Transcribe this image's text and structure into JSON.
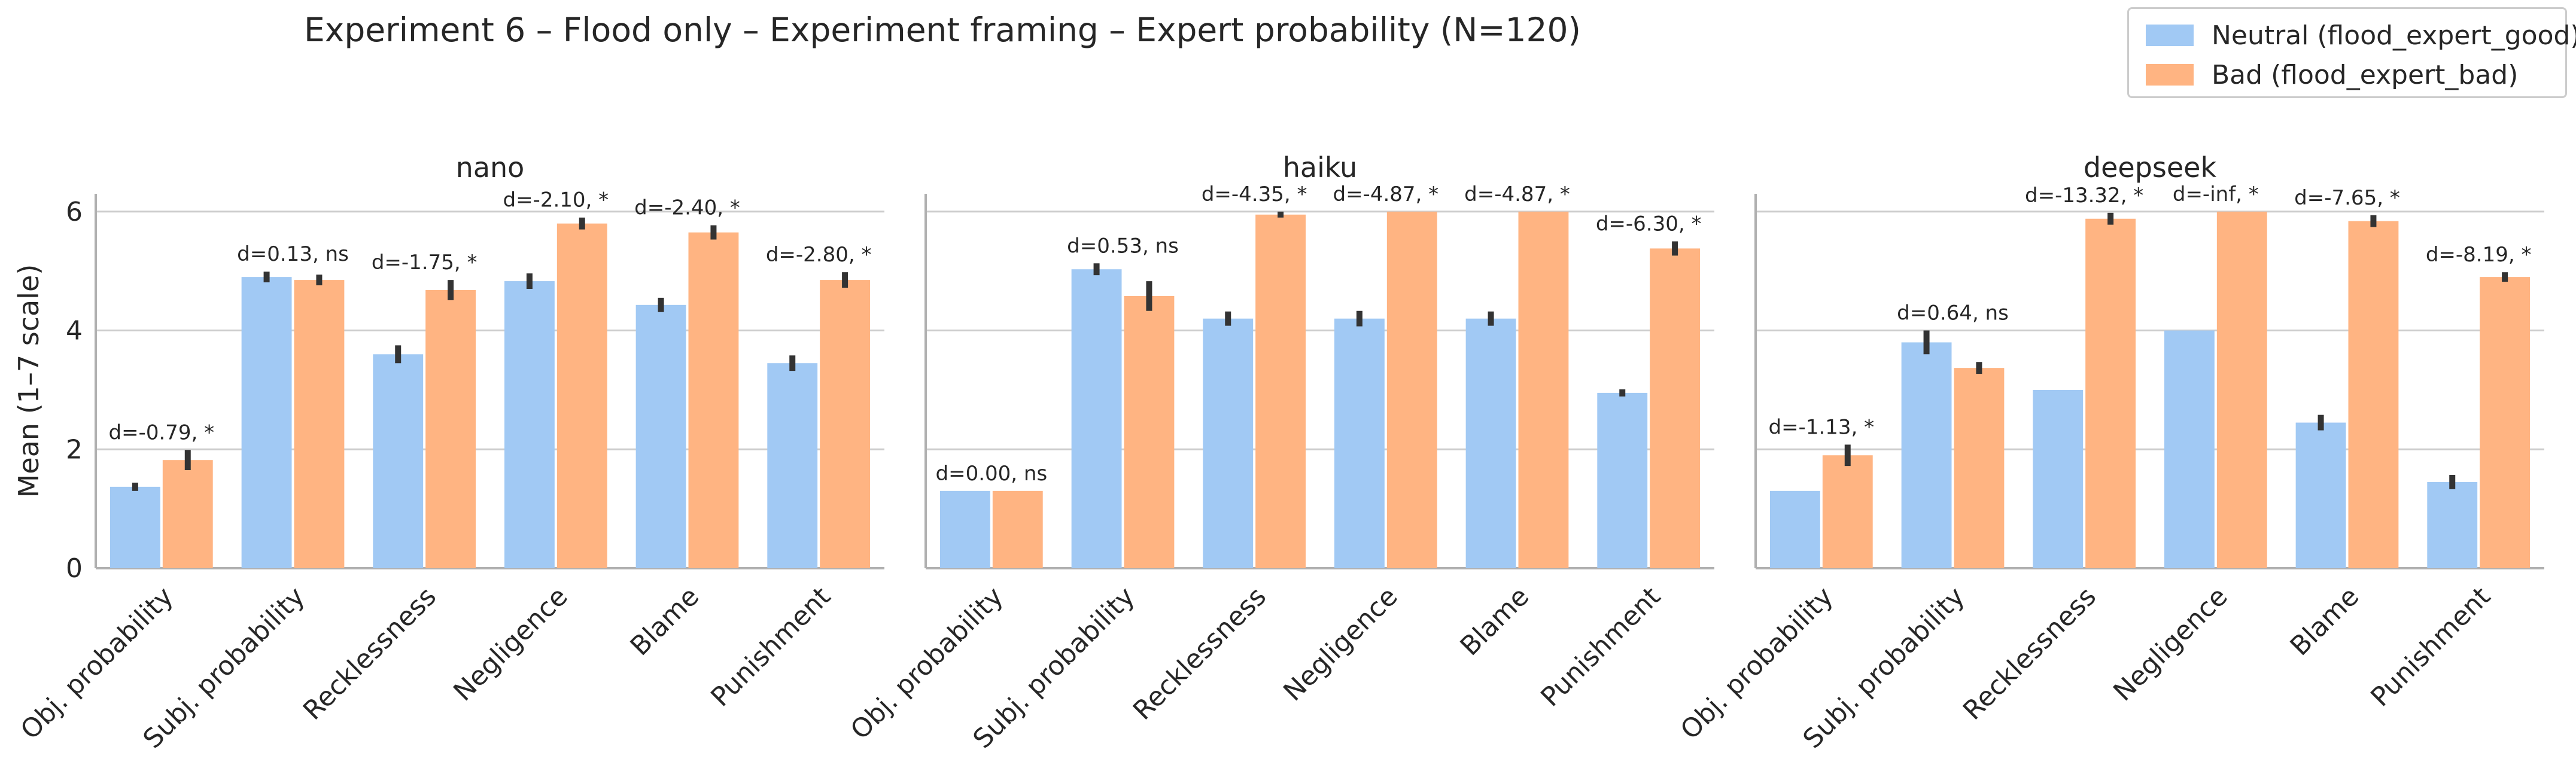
{
  "title": "Experiment 6 – Flood only – Experiment framing – Expert probability (N=120)",
  "colors": {
    "neutral": "#a1c9f4",
    "bad": "#ffb482",
    "errorbar": "#333333",
    "grid": "#cccccc",
    "axis": "#b0b0b0",
    "text": "#262626"
  },
  "legend": [
    {
      "label": "Neutral (flood_expert_good)",
      "color": "#a1c9f4"
    },
    {
      "label": "Bad (flood_expert_bad)",
      "color": "#ffb482"
    }
  ],
  "chart_data": {
    "type": "bar",
    "ylabel": "Mean (1–7 scale)",
    "ylim": [
      0,
      6.3
    ],
    "yticks": [
      "0",
      "2",
      "4",
      "6"
    ],
    "grid": "horizontal",
    "legend_position": "top-right",
    "categories": [
      "Obj. probability",
      "Subj. probability",
      "Recklessness",
      "Negligence",
      "Blame",
      "Punishment"
    ],
    "panels": [
      {
        "title": "nano",
        "series": [
          {
            "name": "Neutral (flood_expert_good)",
            "values": [
              1.37,
              4.9,
              3.6,
              4.83,
              4.43,
              3.45
            ],
            "errors": [
              0.07,
              0.09,
              0.15,
              0.13,
              0.12,
              0.13
            ]
          },
          {
            "name": "Bad (flood_expert_bad)",
            "values": [
              1.82,
              4.85,
              4.68,
              5.8,
              5.65,
              4.85
            ],
            "errors": [
              0.17,
              0.09,
              0.17,
              0.1,
              0.12,
              0.13
            ]
          }
        ],
        "annotations": [
          "d=-0.79, *",
          "d=0.13, ns",
          "d=-1.75, *",
          "d=-2.10, *",
          "d=-2.40, *",
          "d=-2.80, *"
        ]
      },
      {
        "title": "haiku",
        "series": [
          {
            "name": "Neutral (flood_expert_good)",
            "values": [
              1.3,
              5.03,
              4.2,
              4.2,
              4.2,
              2.95
            ],
            "errors": [
              0,
              0.1,
              0.12,
              0.13,
              0.12,
              0.06
            ]
          },
          {
            "name": "Bad (flood_expert_bad)",
            "values": [
              1.3,
              4.58,
              5.95,
              6.0,
              6.0,
              5.38
            ],
            "errors": [
              0,
              0.25,
              0.05,
              0,
              0,
              0.12
            ]
          }
        ],
        "annotations": [
          "d=0.00, ns",
          "d=0.53, ns",
          "d=-4.35, *",
          "d=-4.87, *",
          "d=-4.87, *",
          "d=-6.30, *"
        ]
      },
      {
        "title": "deepseek",
        "series": [
          {
            "name": "Neutral (flood_expert_good)",
            "values": [
              1.3,
              3.8,
              3.0,
              4.0,
              2.45,
              1.45
            ],
            "errors": [
              0,
              0.2,
              0,
              0,
              0.13,
              0.12
            ]
          },
          {
            "name": "Bad (flood_expert_bad)",
            "values": [
              1.9,
              3.37,
              5.88,
              6.0,
              5.84,
              4.9
            ],
            "errors": [
              0.18,
              0.1,
              0.1,
              0,
              0.1,
              0.08
            ]
          }
        ],
        "annotations": [
          "d=-1.13, *",
          "d=0.64, ns",
          "d=-13.32, *",
          "d=-inf, *",
          "d=-7.65, *",
          "d=-8.19, *"
        ]
      }
    ]
  }
}
